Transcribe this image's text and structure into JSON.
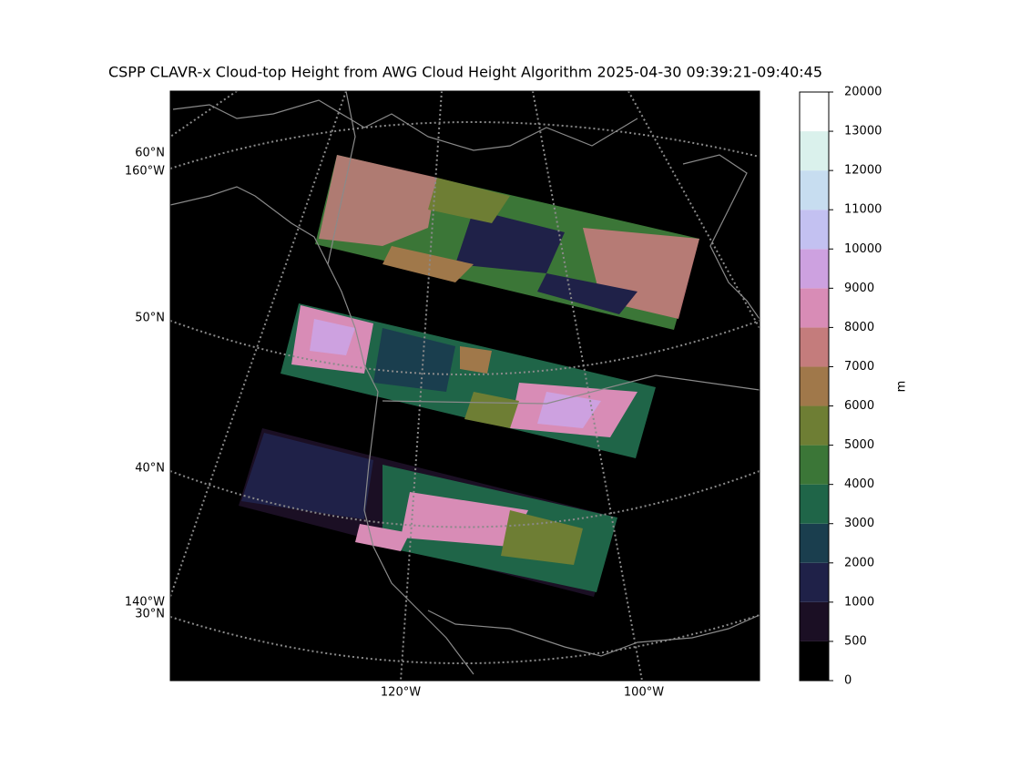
{
  "title": "CSPP CLAVR-x Cloud-top Height from AWG Cloud Height Algorithm 2025-04-30 09:39:21-09:40:45",
  "map": {
    "left_labels": [
      "60°N",
      "160°W",
      "50°N",
      "40°N",
      "140°W",
      "30°N"
    ],
    "bottom_labels": [
      "120°W",
      "100°W"
    ]
  },
  "colorbar": {
    "label": "m",
    "levels": [
      0,
      500,
      1000,
      2000,
      3000,
      4000,
      5000,
      6000,
      7000,
      8000,
      9000,
      10000,
      11000,
      12000,
      13000,
      20000
    ],
    "colors": [
      "#000000",
      "#1b0f24",
      "#1f2148",
      "#1a3e4e",
      "#1f6548",
      "#3b7637",
      "#6e7e34",
      "#a0784a",
      "#c47c7c",
      "#d88cb6",
      "#cda1e0",
      "#c3c1f1",
      "#c7ddf0",
      "#daf1ec",
      "#ffffff"
    ]
  }
}
